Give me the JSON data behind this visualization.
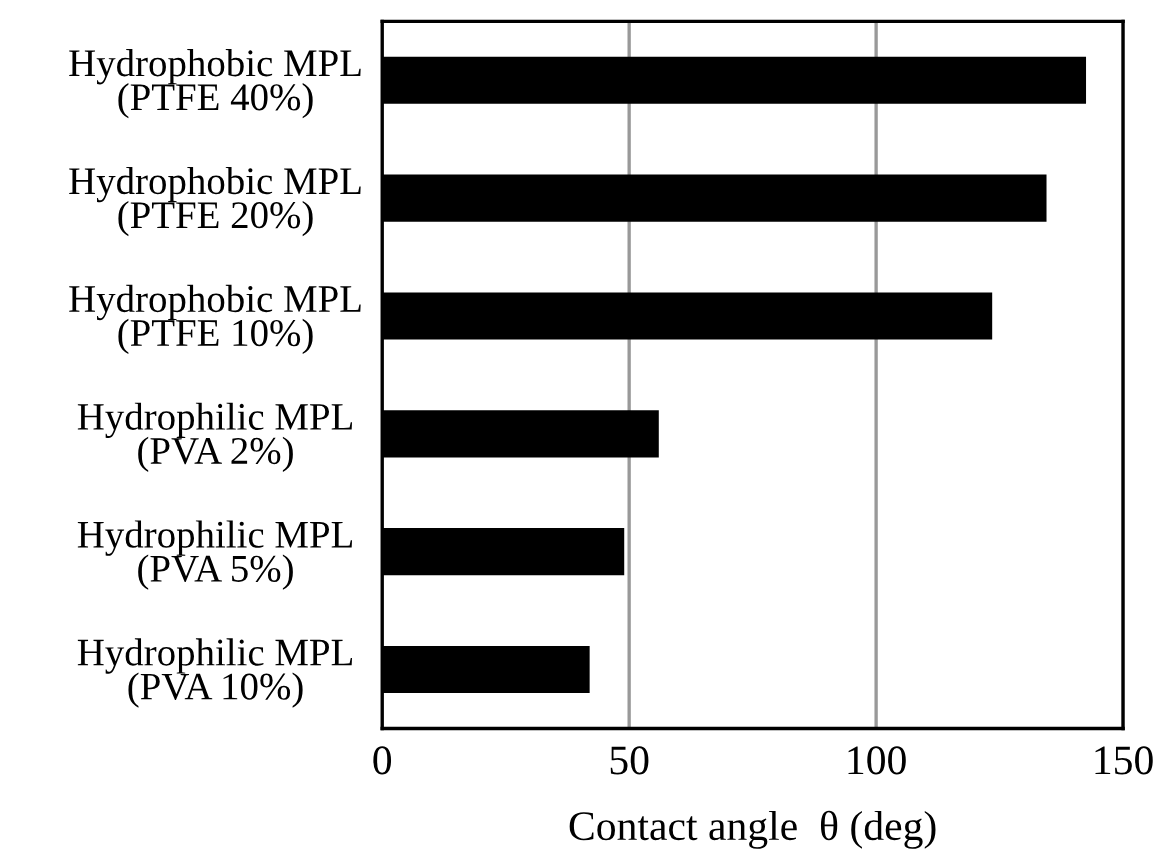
{
  "chart_data": {
    "type": "bar",
    "orientation": "horizontal",
    "categories": [
      "Hydrophobic MPL\n(PTFE 40%)",
      "Hydrophobic MPL\n(PTFE 20%)",
      "Hydrophobic MPL\n(PTFE 10%)",
      "Hydrophilic MPL\n(PVA 2%)",
      "Hydrophilic MPL\n(PVA 5%)",
      "Hydrophilic MPL\n(PVA 10%)"
    ],
    "values": [
      142.5,
      134.5,
      123.5,
      56,
      49,
      42
    ],
    "color": "#000000",
    "xlabel": "Contact angle  θ (deg)",
    "xlim": [
      0,
      150
    ],
    "xticks": [
      0,
      50,
      100,
      150
    ],
    "grid": "x"
  }
}
